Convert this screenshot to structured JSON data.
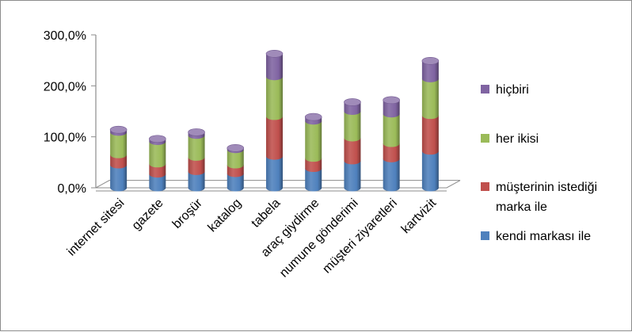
{
  "chart_data": {
    "type": "bar",
    "stacked": true,
    "style": "3d-cylinder",
    "title": "",
    "xlabel": "",
    "ylabel": "",
    "ylim": [
      0,
      300
    ],
    "yticks": [
      0,
      100,
      200,
      300
    ],
    "ytick_labels": [
      "0,0%",
      "100,0%",
      "200,0%",
      "300,0%"
    ],
    "grid": false,
    "legend_position": "right",
    "categories": [
      "internet sitesi",
      "gazete",
      "broşür",
      "katalog",
      "tabela",
      "araç giydirme",
      "numune gönderimi",
      "müşteri ziyaretleri",
      "kartvizit"
    ],
    "series": [
      {
        "name": "kendi markası ile",
        "color": "#4f81bd",
        "values": [
          45,
          27,
          32,
          28,
          62,
          38,
          53,
          57,
          72
        ]
      },
      {
        "name": "müşterinin istediği marka ile",
        "color": "#c0504d",
        "values": [
          20,
          20,
          28,
          17,
          78,
          20,
          45,
          30,
          70
        ]
      },
      {
        "name": "her ikisi",
        "color": "#9bbb59",
        "values": [
          44,
          44,
          43,
          30,
          78,
          73,
          52,
          58,
          72
        ]
      },
      {
        "name": "hiçbiri",
        "color": "#8064a2",
        "values": [
          5,
          5,
          6,
          3,
          45,
          8,
          18,
          27,
          35
        ]
      }
    ]
  }
}
